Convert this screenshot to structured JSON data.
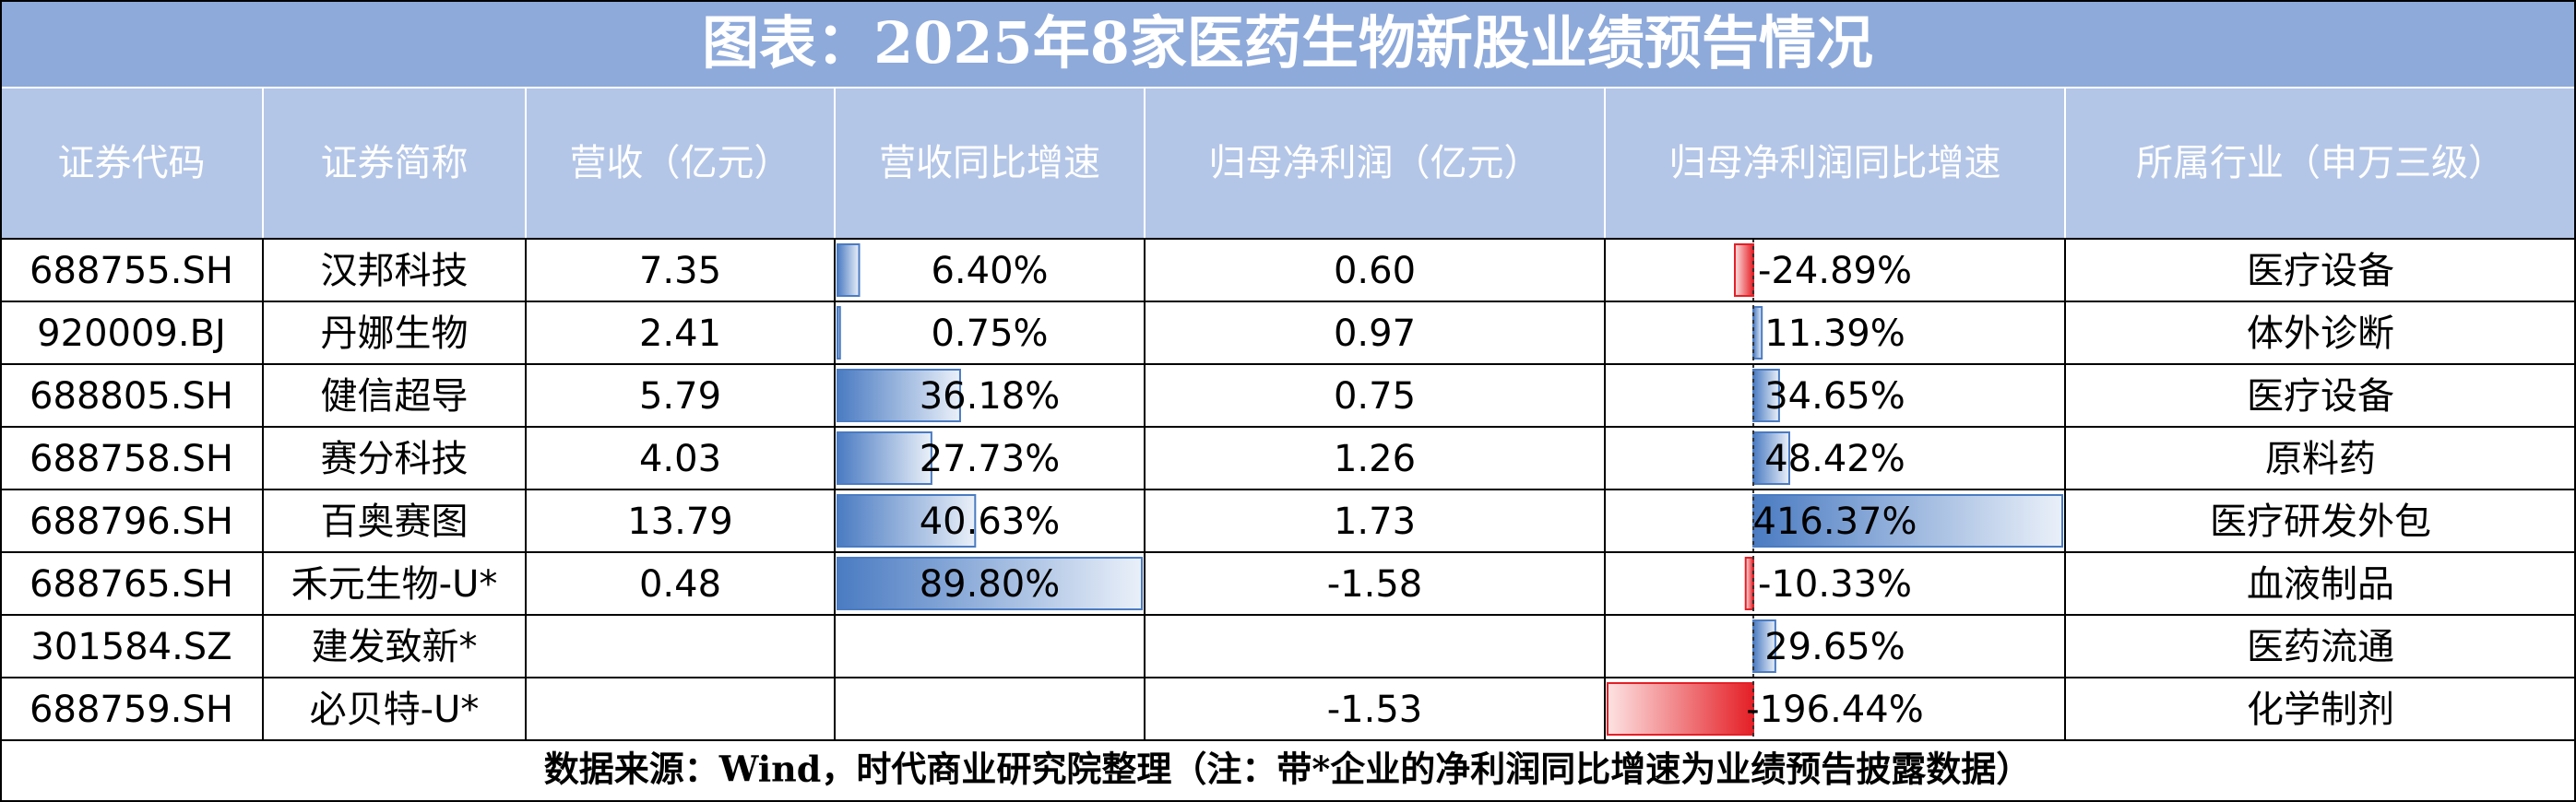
{
  "title": "图表：2025年8家医药生物新股业绩预告情况",
  "table": {
    "headers": [
      "证券代码",
      "证券简称",
      "营收（亿元）",
      "营收同比增速",
      "归母净利润（亿元）",
      "归母净利润同比增速",
      "所属行业（申万三级）"
    ],
    "rows": [
      {
        "code": "688755.SH",
        "name": "汉邦科技",
        "revenue": "7.35",
        "revenue_growth": 6.4,
        "revenue_growth_label": "6.40%",
        "profit": "0.60",
        "profit_growth": -24.89,
        "profit_growth_label": "-24.89%",
        "industry": "医疗设备"
      },
      {
        "code": "920009.BJ",
        "name": "丹娜生物",
        "revenue": "2.41",
        "revenue_growth": 0.75,
        "revenue_growth_label": "0.75%",
        "profit": "0.97",
        "profit_growth": 11.39,
        "profit_growth_label": "11.39%",
        "industry": "体外诊断"
      },
      {
        "code": "688805.SH",
        "name": "健信超导",
        "revenue": "5.79",
        "revenue_growth": 36.18,
        "revenue_growth_label": "36.18%",
        "profit": "0.75",
        "profit_growth": 34.65,
        "profit_growth_label": "34.65%",
        "industry": "医疗设备"
      },
      {
        "code": "688758.SH",
        "name": "赛分科技",
        "revenue": "4.03",
        "revenue_growth": 27.73,
        "revenue_growth_label": "27.73%",
        "profit": "1.26",
        "profit_growth": 48.42,
        "profit_growth_label": "48.42%",
        "industry": "原料药"
      },
      {
        "code": "688796.SH",
        "name": "百奥赛图",
        "revenue": "13.79",
        "revenue_growth": 40.63,
        "revenue_growth_label": "40.63%",
        "profit": "1.73",
        "profit_growth": 416.37,
        "profit_growth_label": "416.37%",
        "industry": "医疗研发外包"
      },
      {
        "code": "688765.SH",
        "name": "禾元生物-U*",
        "revenue": "0.48",
        "revenue_growth": 89.8,
        "revenue_growth_label": "89.80%",
        "profit": "-1.58",
        "profit_growth": -10.33,
        "profit_growth_label": "-10.33%",
        "industry": "血液制品"
      },
      {
        "code": "301584.SZ",
        "name": "建发致新*",
        "revenue": null,
        "revenue_growth": null,
        "revenue_growth_label": null,
        "profit": null,
        "profit_growth": 29.65,
        "profit_growth_label": "29.65%",
        "industry": "医药流通"
      },
      {
        "code": "688759.SH",
        "name": "必贝特-U*",
        "revenue": null,
        "revenue_growth": null,
        "revenue_growth_label": null,
        "profit": "-1.53",
        "profit_growth": -196.44,
        "profit_growth_label": "-196.44%",
        "industry": "化学制剂"
      }
    ]
  },
  "footer": "数据来源：Wind，时代商业研究院整理（注：带*企业的净利润同比增速为业绩预告披露数据）"
}
